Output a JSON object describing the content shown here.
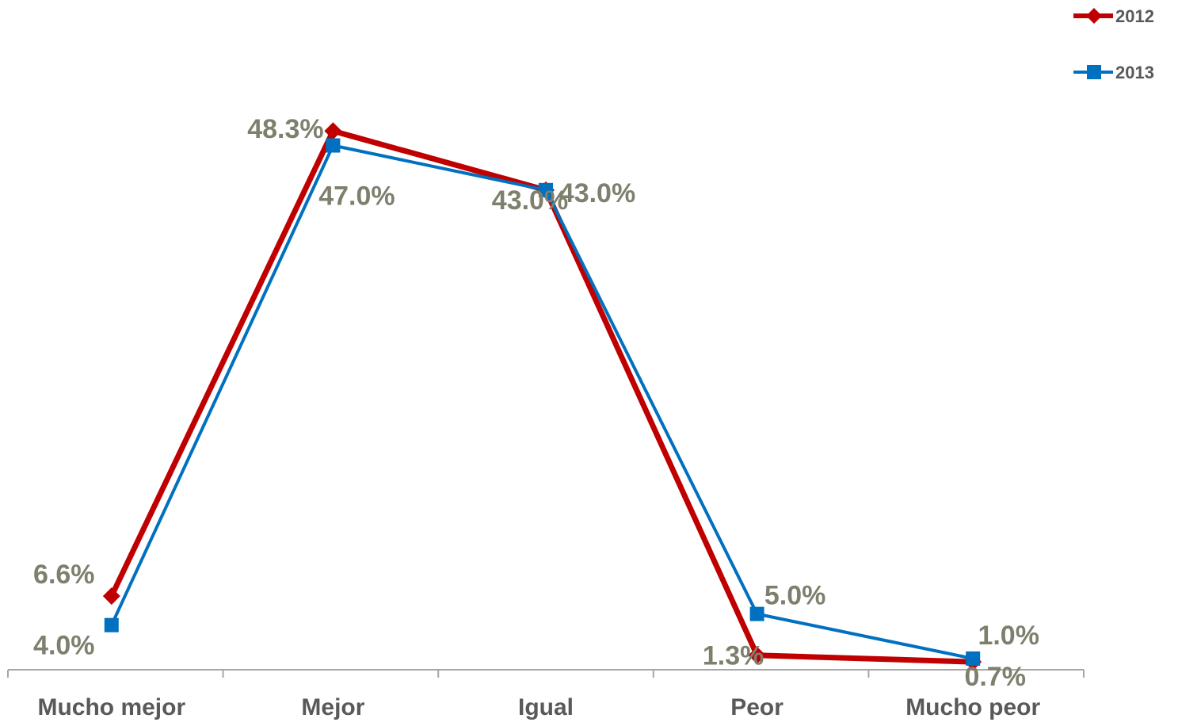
{
  "chart_data": {
    "type": "line",
    "categories": [
      "Mucho mejor",
      "Mejor",
      "Igual",
      "Peor",
      "Mucho peor"
    ],
    "series": [
      {
        "name": "2012",
        "values": [
          6.6,
          48.3,
          43.0,
          1.3,
          0.7
        ],
        "labels": [
          "6.6%",
          "48.3%",
          "43.0%",
          "1.3%",
          "0.7%"
        ],
        "color": "#C00000",
        "marker": "diamond"
      },
      {
        "name": "2013",
        "values": [
          4.0,
          47.0,
          43.0,
          5.0,
          1.0
        ],
        "labels": [
          "4.0%",
          "47.0%",
          "43.0%",
          "5.0%",
          "1.0%"
        ],
        "color": "#0070C0",
        "marker": "square"
      }
    ],
    "ylim": [
      0,
      54
    ],
    "grid": false,
    "legend_position": "top-right",
    "label_color": "#7F7F6E",
    "axis_color": "#A6A6A6"
  }
}
